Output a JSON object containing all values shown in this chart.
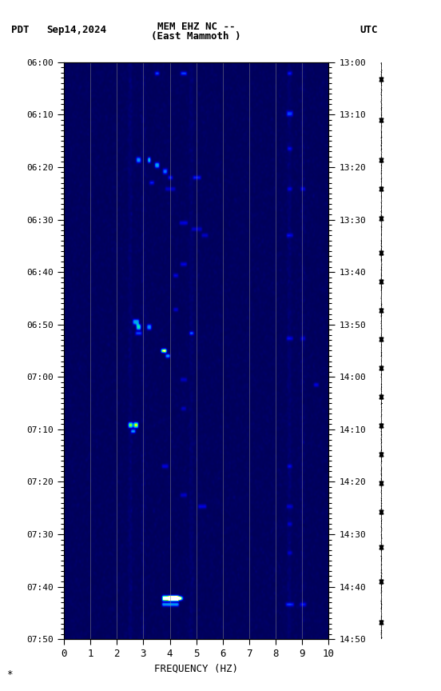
{
  "title_line1": "MEM EHZ NC --",
  "title_line2": "(East Mammoth )",
  "label_pdt": "PDT",
  "label_date": "Sep14,2024",
  "label_utc": "UTC",
  "xlabel": "FREQUENCY (HZ)",
  "freq_ticks": [
    0,
    1,
    2,
    3,
    4,
    5,
    6,
    7,
    8,
    9,
    10
  ],
  "ytick_labels_left": [
    "06:00",
    "06:10",
    "06:20",
    "06:30",
    "06:40",
    "06:50",
    "07:00",
    "07:10",
    "07:20",
    "07:30",
    "07:40",
    "07:50"
  ],
  "ytick_labels_right": [
    "13:00",
    "13:10",
    "13:20",
    "13:30",
    "13:40",
    "13:50",
    "14:00",
    "14:10",
    "14:20",
    "14:30",
    "14:40",
    "14:50"
  ],
  "fig_width": 5.52,
  "fig_height": 8.64,
  "dpi": 100,
  "colormap_nodes": [
    [
      0.0,
      "#000055"
    ],
    [
      0.15,
      "#000099"
    ],
    [
      0.3,
      "#0000DD"
    ],
    [
      0.45,
      "#0055FF"
    ],
    [
      0.58,
      "#0099EE"
    ],
    [
      0.68,
      "#00CCCC"
    ],
    [
      0.78,
      "#00FFAA"
    ],
    [
      0.87,
      "#AAFF00"
    ],
    [
      0.94,
      "#FFFF00"
    ],
    [
      1.0,
      "#FFFFFF"
    ]
  ],
  "seis_spike_times": [
    0.03,
    0.1,
    0.17,
    0.22,
    0.27,
    0.33,
    0.38,
    0.43,
    0.48,
    0.53,
    0.58,
    0.63,
    0.68,
    0.73,
    0.78,
    0.84,
    0.9,
    0.97
  ]
}
